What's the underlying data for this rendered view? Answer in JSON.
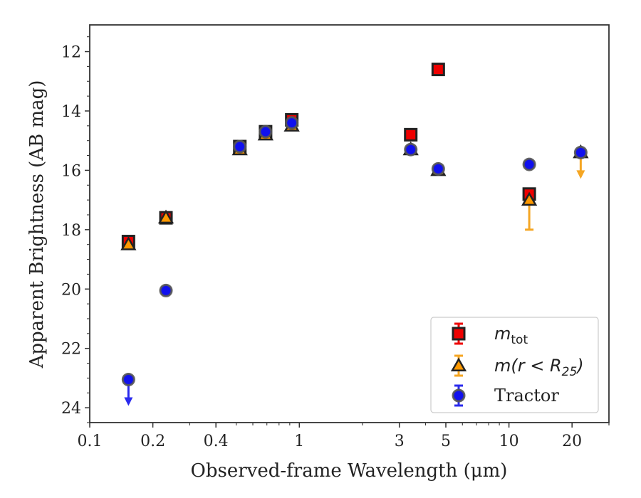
{
  "chart_data": {
    "type": "scatter",
    "xlabel": "Observed-frame Wavelength (μm)",
    "ylabel": "Apparent Brightness (AB mag)",
    "xscale": "log",
    "xlim": [
      0.1,
      30
    ],
    "ylim": [
      24.5,
      11.1
    ],
    "y_inverted": true,
    "x_ticks": [
      {
        "value": 0.1,
        "label": "0.1"
      },
      {
        "value": 0.2,
        "label": "0.2"
      },
      {
        "value": 0.4,
        "label": "0.4"
      },
      {
        "value": 1,
        "label": "1"
      },
      {
        "value": 3,
        "label": "3"
      },
      {
        "value": 5,
        "label": "5"
      },
      {
        "value": 10,
        "label": "10"
      },
      {
        "value": 20,
        "label": "20"
      }
    ],
    "y_ticks": [
      {
        "value": 12,
        "label": "12"
      },
      {
        "value": 14,
        "label": "14"
      },
      {
        "value": 16,
        "label": "16"
      },
      {
        "value": 18,
        "label": "18"
      },
      {
        "value": 20,
        "label": "20"
      },
      {
        "value": 22,
        "label": "22"
      },
      {
        "value": 24,
        "label": "24"
      }
    ],
    "grid": false,
    "legend_position": "bottom-right",
    "series": [
      {
        "name": "m_tot",
        "legend_main": "m",
        "legend_sub": "tot",
        "marker": "square",
        "fill": "#ee0000",
        "edge": "#222222",
        "errcolor": "#ee0000",
        "points": [
          {
            "x": 0.153,
            "y": 18.4
          },
          {
            "x": 0.231,
            "y": 17.6
          },
          {
            "x": 0.52,
            "y": 15.2
          },
          {
            "x": 0.69,
            "y": 14.7
          },
          {
            "x": 0.92,
            "y": 14.3
          },
          {
            "x": 3.4,
            "y": 14.8
          },
          {
            "x": 4.6,
            "y": 12.6
          },
          {
            "x": 12.5,
            "y": 16.8
          }
        ]
      },
      {
        "name": "m(r < R_25)",
        "legend_main": "m(r < R",
        "legend_sub": "25",
        "legend_close": ")",
        "marker": "triangle",
        "fill": "#ff9900",
        "edge": "#222222",
        "errcolor": "#f5a623",
        "points": [
          {
            "x": 0.153,
            "y": 18.5
          },
          {
            "x": 0.231,
            "y": 17.6
          },
          {
            "x": 0.52,
            "y": 15.3
          },
          {
            "x": 0.69,
            "y": 14.8
          },
          {
            "x": 0.92,
            "y": 14.5
          },
          {
            "x": 3.4,
            "y": 15.3
          },
          {
            "x": 4.6,
            "y": 16.0
          },
          {
            "x": 12.5,
            "y": 17.0,
            "yerr": [
              17.0,
              18.0
            ]
          },
          {
            "x": 22,
            "y": 15.4,
            "upper_limit": true
          }
        ]
      },
      {
        "name": "Tractor",
        "legend_main": "Tractor",
        "marker": "circle",
        "fill": "#1010ee",
        "edge": "#555555",
        "errcolor": "#2a2aee",
        "points": [
          {
            "x": 0.153,
            "y": 23.05,
            "upper_limit": true
          },
          {
            "x": 0.231,
            "y": 20.05
          },
          {
            "x": 0.52,
            "y": 15.2
          },
          {
            "x": 0.69,
            "y": 14.7
          },
          {
            "x": 0.92,
            "y": 14.4
          },
          {
            "x": 3.4,
            "y": 15.3
          },
          {
            "x": 4.6,
            "y": 15.95
          },
          {
            "x": 12.5,
            "y": 15.8
          },
          {
            "x": 22,
            "y": 15.4
          }
        ]
      }
    ]
  }
}
